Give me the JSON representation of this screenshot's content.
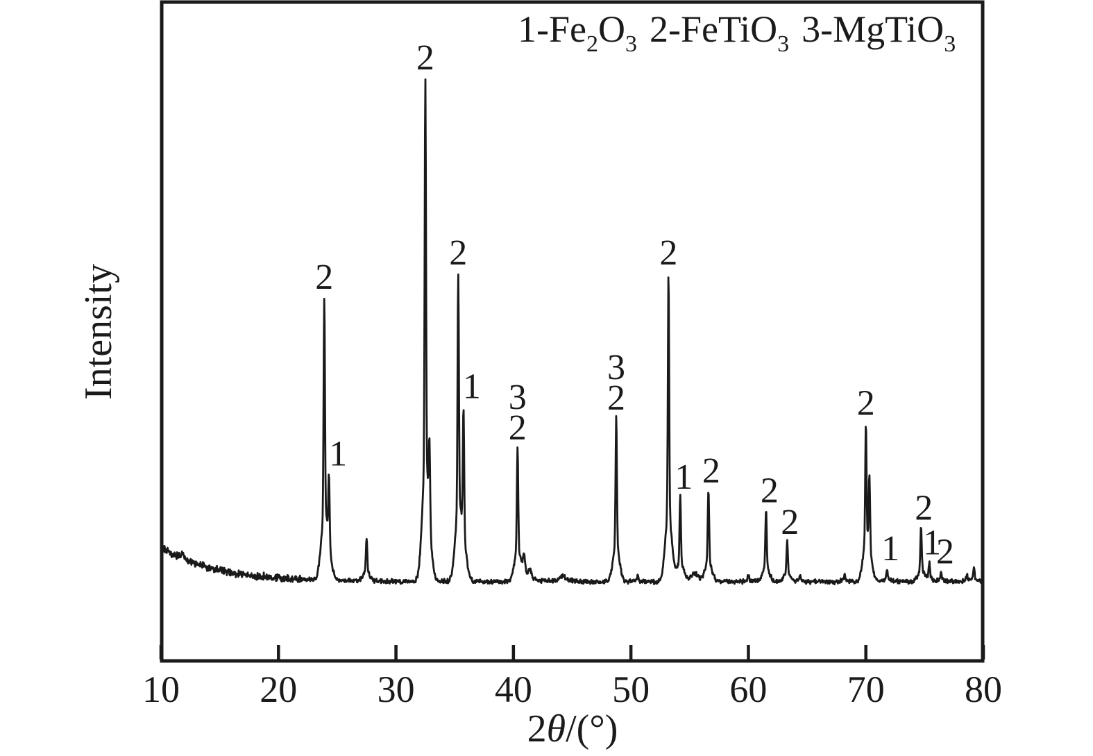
{
  "colors": {
    "background": "#ffffff",
    "trace": "#1a1a1a",
    "frame": "#1a1a1a",
    "text": "#1a1a1a"
  },
  "chart_data": {
    "type": "line",
    "title": "",
    "xlabel": "2θ/(°)",
    "xlabel_parts": [
      [
        "2",
        false
      ],
      [
        "θ",
        true
      ],
      [
        "/(°)",
        false
      ]
    ],
    "ylabel": "Intensity",
    "xlim": [
      10,
      80
    ],
    "ylim": [
      0,
      1000
    ],
    "y_units": "arbitrary intensity units",
    "grid": false,
    "x_ticks": [
      10,
      20,
      30,
      40,
      50,
      60,
      70,
      80
    ],
    "y_ticks": [],
    "legend": {
      "position": "top-right",
      "entries": [
        {
          "key": "1",
          "phase": "Fe2O3",
          "display": [
            [
              "1-Fe",
              false
            ],
            [
              "2",
              true
            ],
            [
              "O",
              false
            ],
            [
              "3",
              true
            ]
          ]
        },
        {
          "key": "2",
          "phase": "FeTiO3",
          "display": [
            [
              "2-FeTiO",
              false
            ],
            [
              "3",
              true
            ]
          ]
        },
        {
          "key": "3",
          "phase": "MgTiO3",
          "display": [
            [
              "3-MgTiO",
              false
            ],
            [
              "3",
              true
            ]
          ]
        }
      ]
    },
    "baseline": {
      "level": 121,
      "decay_amplitude": 52,
      "decay_tau_deg": 4.5,
      "noise_amplitude_low_angle": 6.5,
      "noise_amplitude": 4.2
    },
    "peaks": [
      {
        "two_theta": 11.8,
        "intensity": 13
      },
      {
        "two_theta": 23.9,
        "intensity": 420,
        "label": [
          "2"
        ]
      },
      {
        "two_theta": 24.3,
        "intensity": 130,
        "label": [
          "1"
        ],
        "label_dx": 13
      },
      {
        "two_theta": 27.5,
        "intensity": 66
      },
      {
        "two_theta": 32.5,
        "intensity": 750,
        "label": [
          "2"
        ]
      },
      {
        "two_theta": 32.85,
        "intensity": 145
      },
      {
        "two_theta": 35.3,
        "intensity": 455,
        "label": [
          "2"
        ]
      },
      {
        "two_theta": 35.75,
        "intensity": 240,
        "label": [
          "1"
        ],
        "label_dx": 12
      },
      {
        "two_theta": 40.35,
        "intensity": 199,
        "label": [
          "3",
          "2"
        ]
      },
      {
        "two_theta": 40.9,
        "intensity": 33,
        "width": 0.1
      },
      {
        "two_theta": 41.4,
        "intensity": 14,
        "width": 0.12
      },
      {
        "two_theta": 44.2,
        "intensity": 10,
        "width": 0.2
      },
      {
        "two_theta": 48.75,
        "intensity": 249,
        "label": [
          "3",
          "2"
        ]
      },
      {
        "two_theta": 50.6,
        "intensity": 9
      },
      {
        "two_theta": 53.2,
        "intensity": 468,
        "label": [
          "2"
        ]
      },
      {
        "two_theta": 54.2,
        "intensity": 127,
        "label": [
          "1"
        ],
        "label_dx": 5
      },
      {
        "two_theta": 55.4,
        "intensity": 12,
        "width": 0.3
      },
      {
        "two_theta": 56.6,
        "intensity": 137,
        "label": [
          "2"
        ],
        "label_dx": 4
      },
      {
        "two_theta": 60.0,
        "intensity": 10
      },
      {
        "two_theta": 61.5,
        "intensity": 109,
        "label": [
          "2"
        ],
        "label_dx": 5
      },
      {
        "two_theta": 63.3,
        "intensity": 61,
        "label": [
          "2"
        ],
        "label_dx": 4
      },
      {
        "two_theta": 64.4,
        "intensity": 10
      },
      {
        "two_theta": 68.2,
        "intensity": 11
      },
      {
        "two_theta": 70.0,
        "intensity": 225,
        "label": [
          "2"
        ]
      },
      {
        "two_theta": 70.3,
        "intensity": 135
      },
      {
        "two_theta": 71.8,
        "intensity": 21,
        "label": [
          "1"
        ],
        "label_dx": 5
      },
      {
        "two_theta": 74.7,
        "intensity": 82,
        "label": [
          "2"
        ],
        "label_dx": 4
      },
      {
        "two_theta": 75.4,
        "intensity": 29,
        "label": [
          "1"
        ],
        "label_dx": 4
      },
      {
        "two_theta": 76.4,
        "intensity": 16,
        "label": [
          "2"
        ],
        "label_dx": 6
      },
      {
        "two_theta": 78.6,
        "intensity": 10
      },
      {
        "two_theta": 79.2,
        "intensity": 22
      }
    ]
  }
}
